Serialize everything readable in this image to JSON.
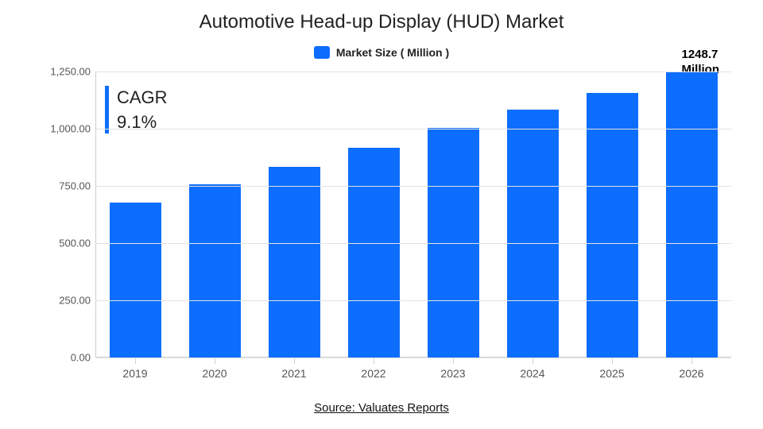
{
  "chart": {
    "type": "bar",
    "title": "Automotive Head-up Display (HUD) Market",
    "legend_label": "Market Size ( Million )",
    "categories": [
      "2019",
      "2020",
      "2021",
      "2022",
      "2023",
      "2024",
      "2025",
      "2026"
    ],
    "values": [
      677,
      757,
      835,
      915,
      1005,
      1085,
      1155,
      1248.7
    ],
    "ylim": [
      0,
      1250
    ],
    "yticks": [
      0,
      250,
      500,
      750,
      1000,
      1250
    ],
    "ytick_labels": [
      "0.00",
      "250.00",
      "500.00",
      "750.00",
      "1,000.00",
      "1,250.00"
    ],
    "bar_color": "#0d6efd",
    "grid_color": "#e2e2e2",
    "axis_color": "#cfcfcf",
    "background_color": "#ffffff",
    "bar_width_ratio": 0.65,
    "title_fontsize": 24,
    "axis_label_fontsize": 14,
    "tick_fontsize": 13
  },
  "cagr": {
    "label": "CAGR",
    "value": "9.1%",
    "accent_color": "#0d6efd"
  },
  "callout": {
    "line1": "1248.7",
    "line2": "Million"
  },
  "source": "Source: Valuates Reports"
}
